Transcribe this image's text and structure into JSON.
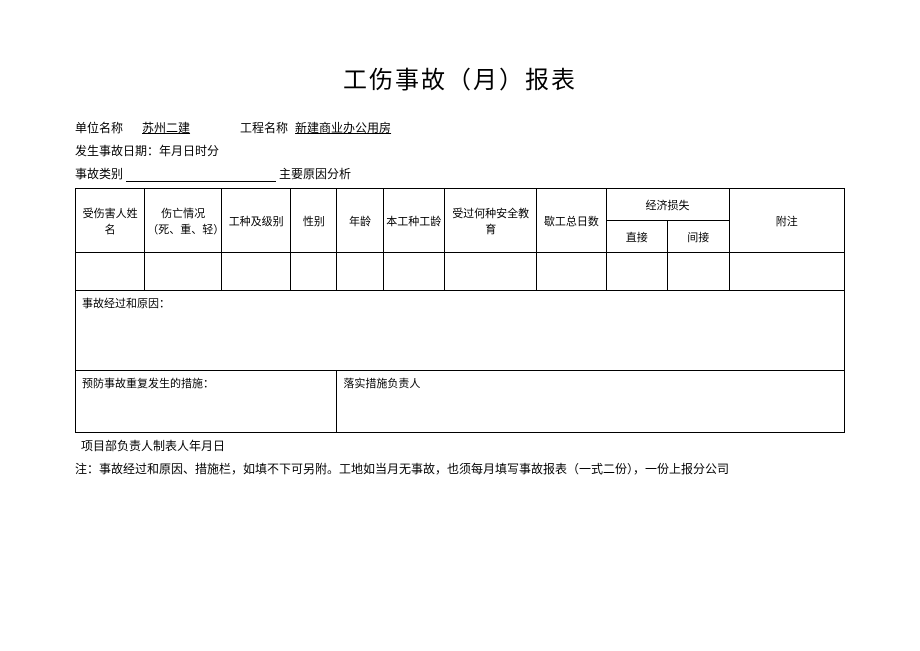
{
  "title": "工伤事故（月）报表",
  "meta": {
    "unit_label": "单位名称",
    "unit_value": "苏州二建",
    "project_label": "工程名称",
    "project_value": "新建商业办公用房",
    "accident_date_label": "发生事故日期：年月日时分",
    "accident_type_label": "事故类别",
    "main_cause_label": "主要原因分析"
  },
  "headers": {
    "victim_name": "受伤害人姓名",
    "casualty": "伤亡情况（死、重、轻）",
    "work_type": "工种及级别",
    "gender": "性别",
    "age": "年龄",
    "work_age": "本工种工龄",
    "safety_edu": "受过何种安全教育",
    "absent_days": "歇工总日数",
    "econ_loss": "经济损失",
    "direct": "直接",
    "indirect": "间接",
    "remark": "附注"
  },
  "sections": {
    "process_cause": "事故经过和原因：",
    "prevention": "预防事故重复发生的措施：",
    "impl_person": "落实措施负责人"
  },
  "footer": {
    "signer": "项目部负责人制表人年月日",
    "note": "注：事故经过和原因、措施栏，如填不下可另附。工地如当月无事故，也须每月填写事故报表（一式二份），一份上报分公司"
  },
  "style": {
    "col_widths": [
      "9%",
      "10%",
      "9%",
      "6%",
      "6%",
      "8%",
      "12%",
      "9%",
      "8%",
      "8%",
      "15%"
    ]
  }
}
